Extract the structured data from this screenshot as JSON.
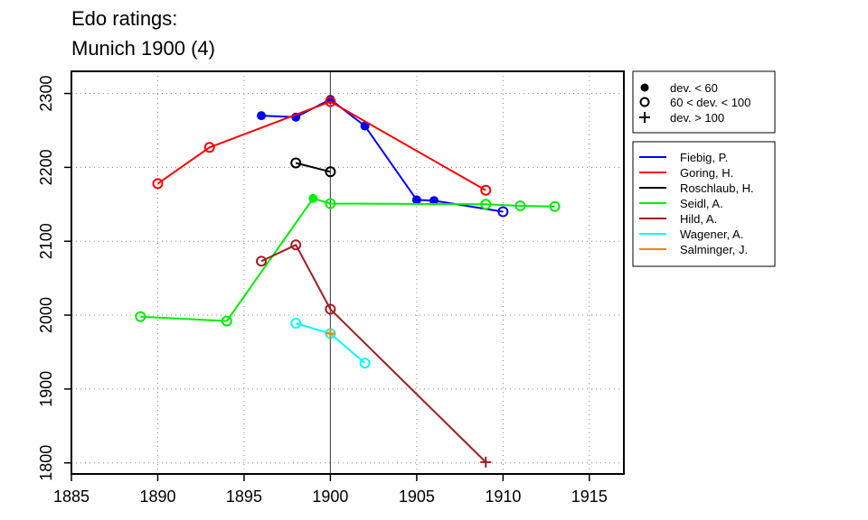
{
  "chart_data": {
    "type": "line",
    "title_lines": [
      "Edo ratings:",
      "Munich 1900 (4)"
    ],
    "xlim": [
      1885,
      1917
    ],
    "ylim": [
      1785,
      2330
    ],
    "x_ticks": [
      1885,
      1890,
      1895,
      1900,
      1905,
      1910,
      1915
    ],
    "y_ticks": [
      1800,
      1900,
      2000,
      2100,
      2200,
      2300
    ],
    "grid": true,
    "reference_line_x": 1900,
    "marker_legend": [
      {
        "marker": "filled",
        "label": "dev. < 60"
      },
      {
        "marker": "open",
        "label": "60 < dev. < 100"
      },
      {
        "marker": "plus",
        "label": "dev. > 100"
      }
    ],
    "series": [
      {
        "name": "Fiebig, P.",
        "color": "#0000ff",
        "points": [
          {
            "x": 1896,
            "y": 2270,
            "m": "filled"
          },
          {
            "x": 1898,
            "y": 2268,
            "m": "filled"
          },
          {
            "x": 1900,
            "y": 2292,
            "m": "filled"
          },
          {
            "x": 1902,
            "y": 2256,
            "m": "filled"
          },
          {
            "x": 1905,
            "y": 2156,
            "m": "filled"
          },
          {
            "x": 1906,
            "y": 2155,
            "m": "filled"
          },
          {
            "x": 1910,
            "y": 2140,
            "m": "open"
          }
        ]
      },
      {
        "name": "Goring, H.",
        "color": "#ff0000",
        "points": [
          {
            "x": 1890,
            "y": 2178,
            "m": "open"
          },
          {
            "x": 1893,
            "y": 2227,
            "m": "open"
          },
          {
            "x": 1900,
            "y": 2289,
            "m": "open"
          },
          {
            "x": 1909,
            "y": 2169,
            "m": "open"
          }
        ]
      },
      {
        "name": "Roschlaub, H.",
        "color": "#000000",
        "points": [
          {
            "x": 1898,
            "y": 2206,
            "m": "open"
          },
          {
            "x": 1900,
            "y": 2194,
            "m": "open"
          }
        ]
      },
      {
        "name": "Seidl, A.",
        "color": "#00ee00",
        "points": [
          {
            "x": 1889,
            "y": 1998,
            "m": "open"
          },
          {
            "x": 1894,
            "y": 1992,
            "m": "open"
          },
          {
            "x": 1899,
            "y": 2158,
            "m": "filled"
          },
          {
            "x": 1900,
            "y": 2151,
            "m": "open"
          },
          {
            "x": 1909,
            "y": 2150,
            "m": "open"
          },
          {
            "x": 1911,
            "y": 2148,
            "m": "open"
          },
          {
            "x": 1913,
            "y": 2147,
            "m": "open"
          }
        ]
      },
      {
        "name": "Hild, A.",
        "color": "#a01d26",
        "points": [
          {
            "x": 1896,
            "y": 2073,
            "m": "open"
          },
          {
            "x": 1898,
            "y": 2095,
            "m": "open"
          },
          {
            "x": 1900,
            "y": 2008,
            "m": "open"
          },
          {
            "x": 1909,
            "y": 1801,
            "m": "plus"
          }
        ]
      },
      {
        "name": "Wagener, A.",
        "color": "#00ffff",
        "points": [
          {
            "x": 1898,
            "y": 1989,
            "m": "open"
          },
          {
            "x": 1900,
            "y": 1975,
            "m": "open"
          },
          {
            "x": 1902,
            "y": 1935,
            "m": "open"
          }
        ]
      },
      {
        "name": "Salminger, J.",
        "color": "#ff7f00",
        "points": [
          {
            "x": 1900,
            "y": 1975,
            "m": "plus"
          }
        ]
      }
    ]
  }
}
